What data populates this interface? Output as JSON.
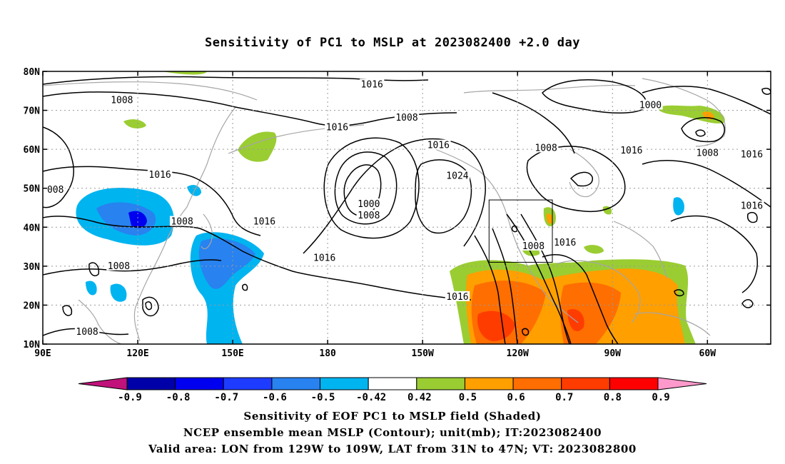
{
  "title": "Sensitivity of PC1 to MSLP at 2023082400 +2.0 day",
  "map": {
    "lat_ticks": [
      {
        "value": 80,
        "label": "80N"
      },
      {
        "value": 70,
        "label": "70N"
      },
      {
        "value": 60,
        "label": "60N"
      },
      {
        "value": 50,
        "label": "50N"
      },
      {
        "value": 40,
        "label": "40N"
      },
      {
        "value": 30,
        "label": "30N"
      },
      {
        "value": 20,
        "label": "20N"
      },
      {
        "value": 10,
        "label": "10N"
      }
    ],
    "lon_ticks": [
      {
        "value": 90,
        "label": "90E"
      },
      {
        "value": 120,
        "label": "120E"
      },
      {
        "value": 150,
        "label": "150E"
      },
      {
        "value": 180,
        "label": "180"
      },
      {
        "value": 210,
        "label": "150W"
      },
      {
        "value": 240,
        "label": "120W"
      },
      {
        "value": 270,
        "label": "90W"
      },
      {
        "value": 300,
        "label": "60W"
      }
    ],
    "lon_range": [
      90,
      320
    ],
    "lat_range": [
      10,
      80
    ],
    "grid": "dotted",
    "valid_box": {
      "lon_min": 231,
      "lon_max": 251,
      "lat_min": 31,
      "lat_max": 47
    },
    "contour_labels": [
      {
        "text": "1016",
        "lon": 194,
        "lat": 76.8
      },
      {
        "text": "1008",
        "lon": 115,
        "lat": 72.8
      },
      {
        "text": "1000",
        "lon": 282,
        "lat": 71.5
      },
      {
        "text": "1008",
        "lon": 205,
        "lat": 68.3
      },
      {
        "text": "1016",
        "lon": 183,
        "lat": 65.8
      },
      {
        "text": "1016",
        "lon": 215,
        "lat": 61.2
      },
      {
        "text": "1008",
        "lon": 249,
        "lat": 60.5
      },
      {
        "text": "1016",
        "lon": 276,
        "lat": 59.8
      },
      {
        "text": "1008",
        "lon": 300,
        "lat": 59.2
      },
      {
        "text": "1016",
        "lon": 314,
        "lat": 58.8
      },
      {
        "text": "1016",
        "lon": 127,
        "lat": 53.6
      },
      {
        "text": "1024",
        "lon": 221,
        "lat": 53.3
      },
      {
        "text": "008",
        "lon": 94,
        "lat": 49.8
      },
      {
        "text": "1000",
        "lon": 193,
        "lat": 46.1
      },
      {
        "text": "1008",
        "lon": 193,
        "lat": 43.2
      },
      {
        "text": "1016",
        "lon": 314,
        "lat": 45.6
      },
      {
        "text": "1008",
        "lon": 134,
        "lat": 41.6
      },
      {
        "text": "1016",
        "lon": 160,
        "lat": 41.6
      },
      {
        "text": "1008",
        "lon": 245,
        "lat": 35.3
      },
      {
        "text": "1016",
        "lon": 255,
        "lat": 36.2
      },
      {
        "text": "1016",
        "lon": 179,
        "lat": 32.3
      },
      {
        "text": "1008",
        "lon": 114,
        "lat": 30.2
      },
      {
        "text": "1016",
        "lon": 221,
        "lat": 22.3
      },
      {
        "text": "1008",
        "lon": 104,
        "lat": 13.3
      }
    ]
  },
  "colorbar": {
    "labels": [
      "-0.9",
      "-0.8",
      "-0.7",
      "-0.6",
      "-0.5",
      "-0.42",
      "0.42",
      "0.5",
      "0.6",
      "0.7",
      "0.8",
      "0.9"
    ],
    "colors": {
      "below_min": "#c0127a",
      "bins": [
        "#0000a8",
        "#0000f0",
        "#1e3cff",
        "#2882f0",
        "#00b4f0",
        "#ffffff",
        "#9acd32",
        "#ff9f00",
        "#ff6e00",
        "#ff3c00",
        "#ff0000"
      ],
      "above_max": "#ff99cc"
    }
  },
  "footer": {
    "line1": "Sensitivity of EOF PC1 to MSLP field (Shaded)",
    "line2": "NCEP ensemble mean MSLP (Contour); unit(mb); IT:2023082400",
    "line3": "Valid area: LON from 129W to 109W, LAT from 31N to 47N; VT: 2023082800"
  }
}
